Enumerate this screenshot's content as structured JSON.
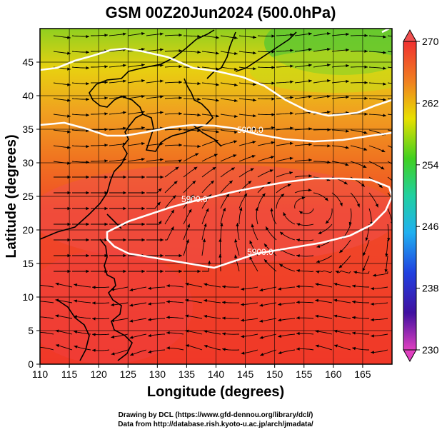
{
  "title": "GSM 00Z20Jun2024 (500.0hPa)",
  "xlabel": "Longitude (degrees)",
  "ylabel": "Latitude  (degrees)",
  "x_ticks": [
    "110",
    "115",
    "120",
    "125",
    "130",
    "135",
    "140",
    "145",
    "150",
    "155",
    "160",
    "165"
  ],
  "y_ticks": [
    "0",
    "5",
    "10",
    "15",
    "20",
    "25",
    "30",
    "35",
    "40",
    "45"
  ],
  "colorbar_ticks": [
    "270",
    "262",
    "254",
    "246",
    "238",
    "230"
  ],
  "contours": [
    {
      "label": "5900.0"
    },
    {
      "label": "5900.0"
    },
    {
      "label": "5900.0"
    }
  ],
  "credits": {
    "line1": "Drawing by DCL (https://www.gfd-dennou.org/library/dcl/)",
    "line2": "Data from http://database.rish.kyoto-u.ac.jp/arch/jmadata/"
  },
  "map_extent": {
    "lon": [
      110,
      170
    ],
    "lat": [
      0,
      50
    ]
  },
  "colors": {
    "cold": "#d22ad2",
    "cool": "#2020c8",
    "mid": "#20b4e6",
    "green": "#30d030",
    "yellow": "#f0c800",
    "orange": "#f07820",
    "warm": "#f03828",
    "hot": "#ff5050",
    "contour": "#ffffff",
    "coast": "#000000"
  }
}
